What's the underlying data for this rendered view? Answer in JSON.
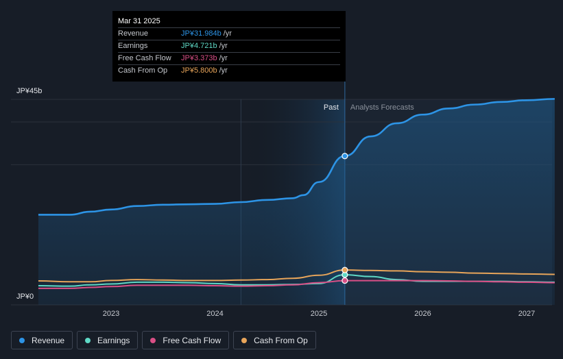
{
  "chart_data": {
    "type": "line",
    "y_top_label": "JP¥45b",
    "y_bottom_label": "JP¥0",
    "ylim": [
      0,
      45
    ],
    "xlim": [
      2022.3,
      2027.27
    ],
    "x_ticks": [
      {
        "value": 2023,
        "label": "2023"
      },
      {
        "value": 2024,
        "label": "2024"
      },
      {
        "value": 2025,
        "label": "2025"
      },
      {
        "value": 2026,
        "label": "2026"
      },
      {
        "value": 2027,
        "label": "2027"
      }
    ],
    "past_label": "Past",
    "forecast_label": "Analysts Forecasts",
    "past_start": 2024.25,
    "divider": 2025.25,
    "series": [
      {
        "name": "Revenue",
        "color": "#2d94e6",
        "fill": true,
        "points": [
          [
            2022.3,
            18.5
          ],
          [
            2022.6,
            18.5
          ],
          [
            2022.8,
            19.2
          ],
          [
            2023.0,
            19.7
          ],
          [
            2023.25,
            20.5
          ],
          [
            2023.5,
            20.8
          ],
          [
            2023.75,
            20.9
          ],
          [
            2024.0,
            21.0
          ],
          [
            2024.25,
            21.4
          ],
          [
            2024.5,
            21.9
          ],
          [
            2024.75,
            22.3
          ],
          [
            2024.85,
            23.0
          ],
          [
            2025.0,
            26.0
          ],
          [
            2025.25,
            31.984
          ],
          [
            2025.5,
            36.5
          ],
          [
            2025.75,
            39.5
          ],
          [
            2026.0,
            41.5
          ],
          [
            2026.25,
            42.9
          ],
          [
            2026.5,
            43.8
          ],
          [
            2026.75,
            44.4
          ],
          [
            2027.0,
            44.8
          ],
          [
            2027.27,
            45.1
          ]
        ]
      },
      {
        "name": "Earnings",
        "color": "#5fd9c6",
        "fill": false,
        "points": [
          [
            2022.3,
            2.2
          ],
          [
            2022.6,
            2.1
          ],
          [
            2022.8,
            2.4
          ],
          [
            2023.0,
            2.6
          ],
          [
            2023.25,
            3.0
          ],
          [
            2023.5,
            3.0
          ],
          [
            2023.75,
            2.9
          ],
          [
            2024.0,
            2.7
          ],
          [
            2024.25,
            2.4
          ],
          [
            2024.5,
            2.4
          ],
          [
            2024.75,
            2.5
          ],
          [
            2025.0,
            2.7
          ],
          [
            2025.25,
            4.721
          ],
          [
            2025.5,
            4.3
          ],
          [
            2025.75,
            3.6
          ],
          [
            2026.0,
            3.2
          ],
          [
            2026.25,
            3.2
          ],
          [
            2026.5,
            3.2
          ],
          [
            2026.75,
            3.2
          ],
          [
            2027.0,
            3.1
          ],
          [
            2027.27,
            3.0
          ]
        ]
      },
      {
        "name": "Free Cash Flow",
        "color": "#d94f86",
        "fill": false,
        "points": [
          [
            2022.3,
            1.6
          ],
          [
            2022.6,
            1.6
          ],
          [
            2022.8,
            1.8
          ],
          [
            2023.0,
            2.0
          ],
          [
            2023.25,
            2.3
          ],
          [
            2023.5,
            2.3
          ],
          [
            2023.75,
            2.3
          ],
          [
            2024.0,
            2.2
          ],
          [
            2024.25,
            2.1
          ],
          [
            2024.5,
            2.2
          ],
          [
            2024.75,
            2.4
          ],
          [
            2025.0,
            2.9
          ],
          [
            2025.25,
            3.373
          ],
          [
            2025.5,
            3.37
          ],
          [
            2025.75,
            3.37
          ],
          [
            2026.0,
            3.37
          ],
          [
            2026.25,
            3.3
          ],
          [
            2026.5,
            3.2
          ],
          [
            2026.75,
            3.1
          ],
          [
            2027.0,
            3.0
          ],
          [
            2027.27,
            2.9
          ]
        ]
      },
      {
        "name": "Cash From Op",
        "color": "#e8a55a",
        "fill": false,
        "points": [
          [
            2022.3,
            3.3
          ],
          [
            2022.6,
            3.1
          ],
          [
            2022.8,
            3.1
          ],
          [
            2023.0,
            3.4
          ],
          [
            2023.25,
            3.6
          ],
          [
            2023.5,
            3.5
          ],
          [
            2023.75,
            3.4
          ],
          [
            2024.0,
            3.4
          ],
          [
            2024.25,
            3.5
          ],
          [
            2024.5,
            3.6
          ],
          [
            2024.75,
            3.9
          ],
          [
            2025.0,
            4.6
          ],
          [
            2025.25,
            5.8
          ],
          [
            2025.5,
            5.7
          ],
          [
            2025.75,
            5.6
          ],
          [
            2026.0,
            5.4
          ],
          [
            2026.25,
            5.3
          ],
          [
            2026.5,
            5.1
          ],
          [
            2026.75,
            5.0
          ],
          [
            2027.0,
            4.9
          ],
          [
            2027.27,
            4.8
          ]
        ]
      }
    ],
    "hover_x": 2025.25,
    "tooltip": {
      "date": "Mar 31 2025",
      "rows": [
        {
          "label": "Revenue",
          "value": "JP¥31.984b",
          "unit": "/yr",
          "color": "#2d94e6"
        },
        {
          "label": "Earnings",
          "value": "JP¥4.721b",
          "unit": "/yr",
          "color": "#5fd9c6"
        },
        {
          "label": "Free Cash Flow",
          "value": "JP¥3.373b",
          "unit": "/yr",
          "color": "#d94f86"
        },
        {
          "label": "Cash From Op",
          "value": "JP¥5.800b",
          "unit": "/yr",
          "color": "#e8a55a"
        }
      ]
    }
  },
  "legend": [
    {
      "label": "Revenue",
      "color": "#2d94e6"
    },
    {
      "label": "Earnings",
      "color": "#5fd9c6"
    },
    {
      "label": "Free Cash Flow",
      "color": "#d94f86"
    },
    {
      "label": "Cash From Op",
      "color": "#e8a55a"
    }
  ]
}
